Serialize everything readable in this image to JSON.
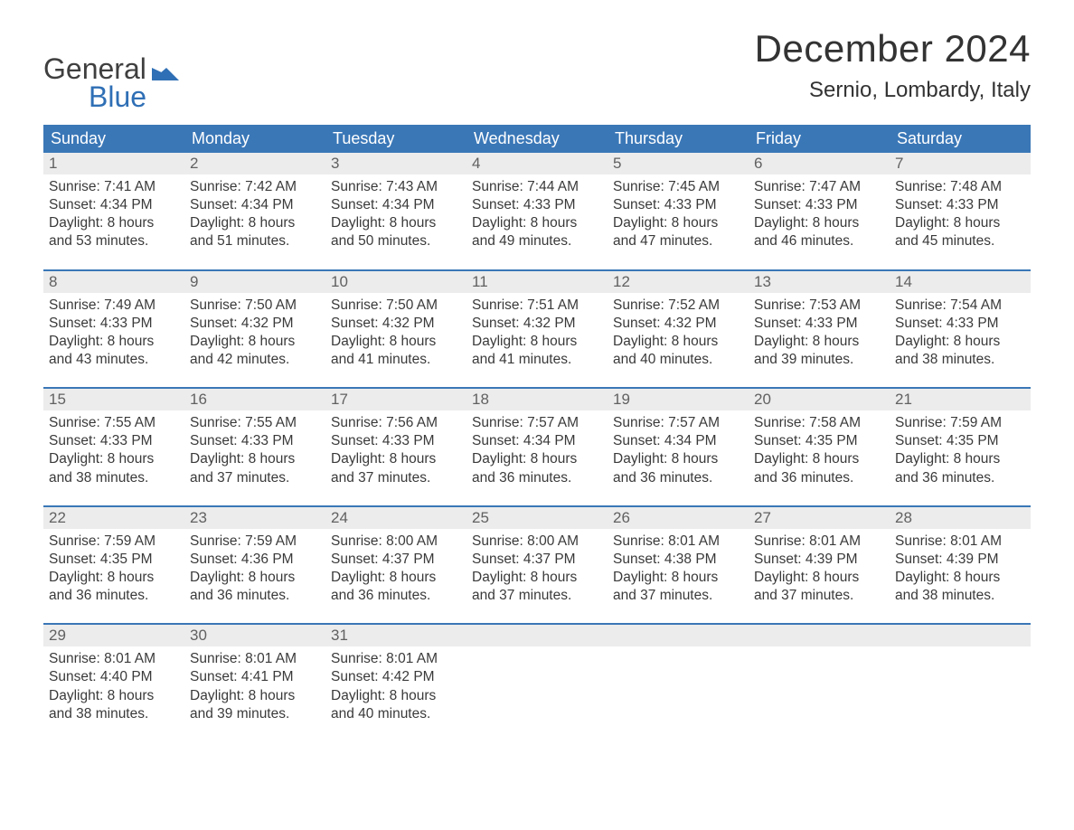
{
  "brand": {
    "part1": "General",
    "part2": "Blue",
    "flag_color": "#2f6fb5"
  },
  "title": "December 2024",
  "location": "Sernio, Lombardy, Italy",
  "colors": {
    "header_bg": "#3a77b7",
    "header_text": "#ffffff",
    "daynum_bg": "#ececec",
    "daynum_text": "#616161",
    "body_text": "#3a3a3a",
    "week_border": "#3a77b7",
    "page_bg": "#ffffff"
  },
  "fonts": {
    "title_pt": 42,
    "location_pt": 24,
    "dayheader_pt": 18,
    "daynum_pt": 17,
    "cell_pt": 15.5
  },
  "day_names": [
    "Sunday",
    "Monday",
    "Tuesday",
    "Wednesday",
    "Thursday",
    "Friday",
    "Saturday"
  ],
  "labels": {
    "sunrise": "Sunrise: ",
    "sunset": "Sunset: ",
    "daylight_prefix": "Daylight: ",
    "minutes_suffix": " minutes."
  },
  "weeks": [
    [
      {
        "n": "1",
        "sunrise": "7:41 AM",
        "sunset": "4:34 PM",
        "dl1": "8 hours",
        "dl2": "and 53 minutes."
      },
      {
        "n": "2",
        "sunrise": "7:42 AM",
        "sunset": "4:34 PM",
        "dl1": "8 hours",
        "dl2": "and 51 minutes."
      },
      {
        "n": "3",
        "sunrise": "7:43 AM",
        "sunset": "4:34 PM",
        "dl1": "8 hours",
        "dl2": "and 50 minutes."
      },
      {
        "n": "4",
        "sunrise": "7:44 AM",
        "sunset": "4:33 PM",
        "dl1": "8 hours",
        "dl2": "and 49 minutes."
      },
      {
        "n": "5",
        "sunrise": "7:45 AM",
        "sunset": "4:33 PM",
        "dl1": "8 hours",
        "dl2": "and 47 minutes."
      },
      {
        "n": "6",
        "sunrise": "7:47 AM",
        "sunset": "4:33 PM",
        "dl1": "8 hours",
        "dl2": "and 46 minutes."
      },
      {
        "n": "7",
        "sunrise": "7:48 AM",
        "sunset": "4:33 PM",
        "dl1": "8 hours",
        "dl2": "and 45 minutes."
      }
    ],
    [
      {
        "n": "8",
        "sunrise": "7:49 AM",
        "sunset": "4:33 PM",
        "dl1": "8 hours",
        "dl2": "and 43 minutes."
      },
      {
        "n": "9",
        "sunrise": "7:50 AM",
        "sunset": "4:32 PM",
        "dl1": "8 hours",
        "dl2": "and 42 minutes."
      },
      {
        "n": "10",
        "sunrise": "7:50 AM",
        "sunset": "4:32 PM",
        "dl1": "8 hours",
        "dl2": "and 41 minutes."
      },
      {
        "n": "11",
        "sunrise": "7:51 AM",
        "sunset": "4:32 PM",
        "dl1": "8 hours",
        "dl2": "and 41 minutes."
      },
      {
        "n": "12",
        "sunrise": "7:52 AM",
        "sunset": "4:32 PM",
        "dl1": "8 hours",
        "dl2": "and 40 minutes."
      },
      {
        "n": "13",
        "sunrise": "7:53 AM",
        "sunset": "4:33 PM",
        "dl1": "8 hours",
        "dl2": "and 39 minutes."
      },
      {
        "n": "14",
        "sunrise": "7:54 AM",
        "sunset": "4:33 PM",
        "dl1": "8 hours",
        "dl2": "and 38 minutes."
      }
    ],
    [
      {
        "n": "15",
        "sunrise": "7:55 AM",
        "sunset": "4:33 PM",
        "dl1": "8 hours",
        "dl2": "and 38 minutes."
      },
      {
        "n": "16",
        "sunrise": "7:55 AM",
        "sunset": "4:33 PM",
        "dl1": "8 hours",
        "dl2": "and 37 minutes."
      },
      {
        "n": "17",
        "sunrise": "7:56 AM",
        "sunset": "4:33 PM",
        "dl1": "8 hours",
        "dl2": "and 37 minutes."
      },
      {
        "n": "18",
        "sunrise": "7:57 AM",
        "sunset": "4:34 PM",
        "dl1": "8 hours",
        "dl2": "and 36 minutes."
      },
      {
        "n": "19",
        "sunrise": "7:57 AM",
        "sunset": "4:34 PM",
        "dl1": "8 hours",
        "dl2": "and 36 minutes."
      },
      {
        "n": "20",
        "sunrise": "7:58 AM",
        "sunset": "4:35 PM",
        "dl1": "8 hours",
        "dl2": "and 36 minutes."
      },
      {
        "n": "21",
        "sunrise": "7:59 AM",
        "sunset": "4:35 PM",
        "dl1": "8 hours",
        "dl2": "and 36 minutes."
      }
    ],
    [
      {
        "n": "22",
        "sunrise": "7:59 AM",
        "sunset": "4:35 PM",
        "dl1": "8 hours",
        "dl2": "and 36 minutes."
      },
      {
        "n": "23",
        "sunrise": "7:59 AM",
        "sunset": "4:36 PM",
        "dl1": "8 hours",
        "dl2": "and 36 minutes."
      },
      {
        "n": "24",
        "sunrise": "8:00 AM",
        "sunset": "4:37 PM",
        "dl1": "8 hours",
        "dl2": "and 36 minutes."
      },
      {
        "n": "25",
        "sunrise": "8:00 AM",
        "sunset": "4:37 PM",
        "dl1": "8 hours",
        "dl2": "and 37 minutes."
      },
      {
        "n": "26",
        "sunrise": "8:01 AM",
        "sunset": "4:38 PM",
        "dl1": "8 hours",
        "dl2": "and 37 minutes."
      },
      {
        "n": "27",
        "sunrise": "8:01 AM",
        "sunset": "4:39 PM",
        "dl1": "8 hours",
        "dl2": "and 37 minutes."
      },
      {
        "n": "28",
        "sunrise": "8:01 AM",
        "sunset": "4:39 PM",
        "dl1": "8 hours",
        "dl2": "and 38 minutes."
      }
    ],
    [
      {
        "n": "29",
        "sunrise": "8:01 AM",
        "sunset": "4:40 PM",
        "dl1": "8 hours",
        "dl2": "and 38 minutes."
      },
      {
        "n": "30",
        "sunrise": "8:01 AM",
        "sunset": "4:41 PM",
        "dl1": "8 hours",
        "dl2": "and 39 minutes."
      },
      {
        "n": "31",
        "sunrise": "8:01 AM",
        "sunset": "4:42 PM",
        "dl1": "8 hours",
        "dl2": "and 40 minutes."
      },
      null,
      null,
      null,
      null
    ]
  ]
}
